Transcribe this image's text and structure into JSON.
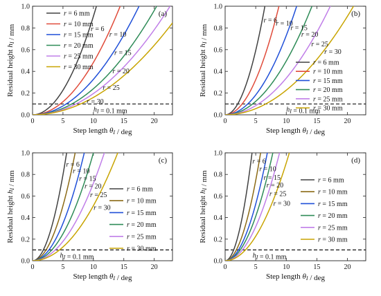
{
  "chart_data": [
    {
      "type": "line",
      "panel": "(a)",
      "xlabel": "Step length θ_I / deg",
      "ylabel": "Residual height h_I / mm",
      "xlim": [
        0,
        23
      ],
      "ylim": [
        0,
        1.0
      ],
      "xticks": [
        0,
        5,
        10,
        15,
        20
      ],
      "yticks": [
        0.0,
        0.2,
        0.4,
        0.6,
        0.8,
        1.0
      ],
      "legend_position": "top-left",
      "threshold": {
        "y": 0.1,
        "label": "h_I = 0.1 mm"
      },
      "series": [
        {
          "name": "r = 6 mm",
          "short": "r = 6",
          "color": "#404040",
          "scale": 10.5
        },
        {
          "name": "r = 10 mm",
          "short": "r = 10",
          "color": "#e04b3a",
          "scale": 14.4
        },
        {
          "name": "r = 15 mm",
          "short": "r = 15",
          "color": "#1f4fd8",
          "scale": 17.5
        },
        {
          "name": "r = 20 mm",
          "short": "r = 20",
          "color": "#2e8b57",
          "scale": 20.4
        },
        {
          "name": "r = 25 mm",
          "short": "r = 25",
          "color": "#c07ee8",
          "scale": 22.6
        },
        {
          "name": "r = 30 mm",
          "short": "r = 30",
          "color": "#c8a400",
          "scale": 25.0
        }
      ]
    },
    {
      "type": "line",
      "panel": "(b)",
      "xlabel": "Step length θ_I / deg",
      "ylabel": "Residual height h_I / mm",
      "xlim": [
        0,
        23
      ],
      "ylim": [
        0,
        1.0
      ],
      "xticks": [
        0,
        5,
        10,
        15,
        20
      ],
      "yticks": [
        0.0,
        0.2,
        0.4,
        0.6,
        0.8,
        1.0
      ],
      "legend_position": "bottom-right",
      "threshold": {
        "y": 0.1,
        "label": "h_I = 0.1 mm"
      },
      "series": [
        {
          "name": "r = 6 mm",
          "short": "r = 6",
          "color": "#404040",
          "scale": 6.5
        },
        {
          "name": "r = 10 mm",
          "short": "r = 10",
          "color": "#e04b3a",
          "scale": 8.8
        },
        {
          "name": "r = 15 mm",
          "short": "r = 15",
          "color": "#1f4fd8",
          "scale": 11.7
        },
        {
          "name": "r = 20 mm",
          "short": "r = 20",
          "color": "#2e8b57",
          "scale": 14.2
        },
        {
          "name": "r = 25 mm",
          "short": "r = 25",
          "color": "#c07ee8",
          "scale": 17.2
        },
        {
          "name": "r = 30 mm",
          "short": "r = 30",
          "color": "#c8a400",
          "scale": 21.0
        }
      ]
    },
    {
      "type": "line",
      "panel": "(c)",
      "xlabel": "Step length θ_I / deg",
      "ylabel": "Residual height h_I / mm",
      "xlim": [
        0,
        23
      ],
      "ylim": [
        0,
        1.0
      ],
      "xticks": [
        0,
        5,
        10,
        15,
        20
      ],
      "yticks": [
        0.0,
        0.2,
        0.4,
        0.6,
        0.8,
        1.0
      ],
      "legend_position": "right",
      "threshold": {
        "y": 0.1,
        "label": "h_I = 0.1 mm"
      },
      "series": [
        {
          "name": "r = 6 mm",
          "short": "r = 6",
          "color": "#404040",
          "scale": 5.6
        },
        {
          "name": "r = 10 mm",
          "short": "r = 10",
          "color": "#8b6914",
          "scale": 7.0
        },
        {
          "name": "r = 15 mm",
          "short": "r = 15",
          "color": "#1f4fd8",
          "scale": 8.5
        },
        {
          "name": "r = 20 mm",
          "short": "r = 20",
          "color": "#2e8b57",
          "scale": 10.0
        },
        {
          "name": "r = 25 mm",
          "short": "r = 25",
          "color": "#c07ee8",
          "scale": 11.8
        },
        {
          "name": "r = 30 mm",
          "short": "r = 30",
          "color": "#c8a400",
          "scale": 14.0
        }
      ]
    },
    {
      "type": "line",
      "panel": "(d)",
      "xlabel": "Step length θ_I / deg",
      "ylabel": "Residual height h_I / mm",
      "xlim": [
        0,
        23
      ],
      "ylim": [
        0,
        1.0
      ],
      "xticks": [
        0,
        5,
        10,
        15,
        20
      ],
      "yticks": [
        0.0,
        0.2,
        0.4,
        0.6,
        0.8,
        1.0
      ],
      "legend_position": "right",
      "threshold": {
        "y": 0.1,
        "label": "h_I = 0.1 mm"
      },
      "series": [
        {
          "name": "r = 6 mm",
          "short": "r = 6",
          "color": "#404040",
          "scale": 4.4
        },
        {
          "name": "r = 10 mm",
          "short": "r = 10",
          "color": "#8b6914",
          "scale": 5.8
        },
        {
          "name": "r = 15 mm",
          "short": "r = 15",
          "color": "#1f4fd8",
          "scale": 6.9
        },
        {
          "name": "r = 20 mm",
          "short": "r = 20",
          "color": "#2e8b57",
          "scale": 7.8
        },
        {
          "name": "r = 25 mm",
          "short": "r = 25",
          "color": "#c07ee8",
          "scale": 8.9
        },
        {
          "name": "r = 30 mm",
          "short": "r = 30",
          "color": "#c8a400",
          "scale": 10.5
        }
      ]
    }
  ]
}
